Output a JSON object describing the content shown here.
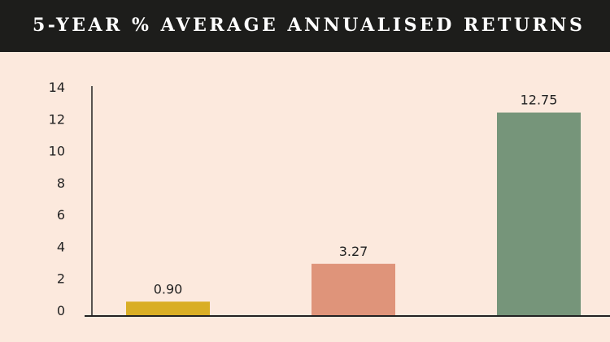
{
  "chart_data": {
    "type": "bar",
    "title": "5-YEAR % AVERAGE ANNUALISED RETURNS",
    "categories": [
      "",
      "",
      ""
    ],
    "values": [
      0.9,
      3.27,
      12.75
    ],
    "data_labels": [
      "0.90",
      "3.27",
      "12.75"
    ],
    "colors": [
      "#d9ae25",
      "#df947a",
      "#76957a"
    ],
    "ylim": [
      0,
      14
    ],
    "yticks": [
      0,
      2,
      4,
      6,
      8,
      10,
      12,
      14
    ],
    "grid": false,
    "xlabel": "",
    "ylabel": ""
  }
}
